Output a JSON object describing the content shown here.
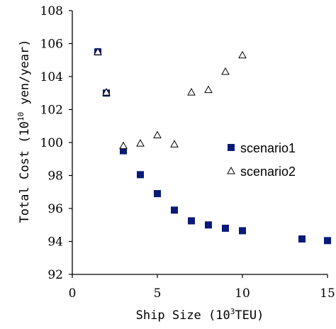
{
  "chart_data": {
    "type": "scatter",
    "xlabel": "Ship Size (10",
    "xlabel_sup": "3",
    "xlabel_tail": "TEU)",
    "ylabel": "Total Cost (10",
    "ylabel_sup": "10",
    "ylabel_tail": " yen/year)",
    "xlim": [
      0,
      15
    ],
    "ylim": [
      92,
      108
    ],
    "xticks": [
      "0",
      "5",
      "10",
      "15"
    ],
    "yticks": [
      "92",
      "94",
      "96",
      "98",
      "100",
      "102",
      "104",
      "106",
      "108"
    ],
    "grid": false,
    "legend_position": "right",
    "series": [
      {
        "name": "scenario1",
        "marker": "filled-square",
        "color": "#0a1a78",
        "points": [
          [
            1.5,
            105.5
          ],
          [
            2,
            103
          ],
          [
            3,
            99.5
          ],
          [
            4,
            98.05
          ],
          [
            5,
            96.9
          ],
          [
            6,
            95.9
          ],
          [
            7,
            95.25
          ],
          [
            8,
            95.0
          ],
          [
            9,
            94.8
          ],
          [
            10,
            94.65
          ],
          [
            13.5,
            94.15
          ],
          [
            15,
            94.05
          ]
        ]
      },
      {
        "name": "scenario2",
        "marker": "open-triangle",
        "color": "#000000",
        "points": [
          [
            1.5,
            105.5
          ],
          [
            2,
            103.05
          ],
          [
            3,
            99.8
          ],
          [
            4,
            99.95
          ],
          [
            5,
            100.45
          ],
          [
            6,
            99.9
          ],
          [
            7,
            103.05
          ],
          [
            8,
            103.2
          ],
          [
            9,
            104.3
          ],
          [
            10,
            105.3
          ]
        ]
      }
    ]
  }
}
